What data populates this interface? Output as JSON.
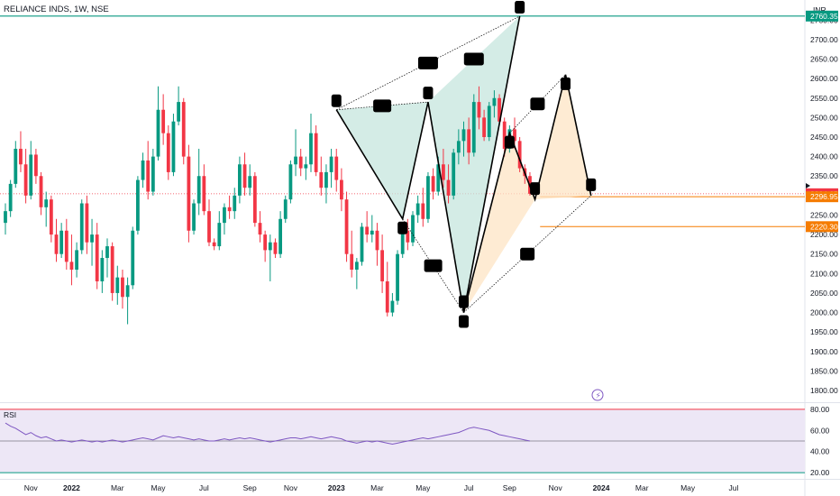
{
  "header": {
    "title": "RELIANCE INDS, 1W, NSE",
    "currency": "INR"
  },
  "colors": {
    "up": "#089981",
    "down": "#f23645",
    "rsi_line": "#7e57c2",
    "rsi_band": "#ede7f6",
    "rsi_upper": "#f23645",
    "rsi_lower": "#089981",
    "level_teal": "#089981",
    "level_orange": "#f57c00",
    "pattern_green": "#c5e6dd",
    "pattern_peach": "#fde4c4",
    "last_price": "#f23645",
    "pattern_line": "#000000"
  },
  "chart_data": [
    {
      "type": "candlestick",
      "title": "RELIANCE INDS, 1W, NSE",
      "ylim": [
        1770,
        2790
      ],
      "yticks": [
        "1800.00",
        "1850.00",
        "1900.00",
        "1950.00",
        "2000.00",
        "2050.00",
        "2100.00",
        "2150.00",
        "2200.00",
        "2250.00",
        "2300.00",
        "2350.00",
        "2400.00",
        "2450.00",
        "2500.00",
        "2550.00",
        "2600.00",
        "2650.00",
        "2700.00",
        "2750.00"
      ],
      "xticks": [
        {
          "label": "Nov",
          "i": 5
        },
        {
          "label": "2022",
          "i": 13,
          "bold": true
        },
        {
          "label": "Mar",
          "i": 22
        },
        {
          "label": "May",
          "i": 30
        },
        {
          "label": "Jul",
          "i": 39
        },
        {
          "label": "Sep",
          "i": 48
        },
        {
          "label": "Nov",
          "i": 56
        },
        {
          "label": "2023",
          "i": 65,
          "bold": true
        },
        {
          "label": "Mar",
          "i": 73
        },
        {
          "label": "May",
          "i": 82
        },
        {
          "label": "Jul",
          "i": 91
        },
        {
          "label": "Sep",
          "i": 99
        },
        {
          "label": "Nov",
          "i": 108
        },
        {
          "label": "2024",
          "i": 117,
          "bold": true
        },
        {
          "label": "Mar",
          "i": 125
        },
        {
          "label": "May",
          "i": 134
        },
        {
          "label": "Jul",
          "i": 143
        }
      ],
      "candles": [
        [
          2230,
          2280,
          2200,
          2260
        ],
        [
          2260,
          2340,
          2245,
          2330
        ],
        [
          2330,
          2440,
          2320,
          2420
        ],
        [
          2420,
          2465,
          2360,
          2380
        ],
        [
          2380,
          2420,
          2280,
          2300
        ],
        [
          2300,
          2440,
          2290,
          2405
        ],
        [
          2405,
          2420,
          2330,
          2350
        ],
        [
          2350,
          2360,
          2250,
          2270
        ],
        [
          2270,
          2310,
          2220,
          2290
        ],
        [
          2290,
          2300,
          2180,
          2200
        ],
        [
          2200,
          2240,
          2130,
          2150
        ],
        [
          2150,
          2230,
          2140,
          2210
        ],
        [
          2210,
          2240,
          2110,
          2130
        ],
        [
          2130,
          2200,
          2070,
          2110
        ],
        [
          2110,
          2180,
          2090,
          2160
        ],
        [
          2160,
          2290,
          2150,
          2280
        ],
        [
          2280,
          2300,
          2150,
          2180
        ],
        [
          2180,
          2240,
          2120,
          2200
        ],
        [
          2200,
          2230,
          2060,
          2080
        ],
        [
          2080,
          2160,
          2050,
          2140
        ],
        [
          2140,
          2190,
          2090,
          2170
        ],
        [
          2170,
          2180,
          2030,
          2050
        ],
        [
          2050,
          2120,
          2020,
          2090
        ],
        [
          2090,
          2110,
          2010,
          2040
        ],
        [
          2040,
          2090,
          1970,
          2070
        ],
        [
          2070,
          2220,
          2060,
          2210
        ],
        [
          2210,
          2350,
          2200,
          2340
        ],
        [
          2340,
          2410,
          2320,
          2390
        ],
        [
          2390,
          2440,
          2290,
          2310
        ],
        [
          2310,
          2420,
          2300,
          2400
        ],
        [
          2400,
          2580,
          2390,
          2520
        ],
        [
          2520,
          2560,
          2430,
          2460
        ],
        [
          2460,
          2480,
          2340,
          2360
        ],
        [
          2360,
          2510,
          2350,
          2490
        ],
        [
          2490,
          2580,
          2480,
          2540
        ],
        [
          2540,
          2550,
          2380,
          2400
        ],
        [
          2400,
          2430,
          2180,
          2210
        ],
        [
          2210,
          2290,
          2200,
          2280
        ],
        [
          2280,
          2420,
          2250,
          2350
        ],
        [
          2350,
          2380,
          2250,
          2260
        ],
        [
          2260,
          2290,
          2170,
          2180
        ],
        [
          2180,
          2190,
          2160,
          2170
        ],
        [
          2170,
          2260,
          2160,
          2230
        ],
        [
          2230,
          2280,
          2200,
          2270
        ],
        [
          2270,
          2300,
          2240,
          2260
        ],
        [
          2260,
          2320,
          2240,
          2300
        ],
        [
          2300,
          2400,
          2280,
          2380
        ],
        [
          2380,
          2410,
          2300,
          2320
        ],
        [
          2320,
          2380,
          2300,
          2350
        ],
        [
          2350,
          2360,
          2220,
          2230
        ],
        [
          2230,
          2260,
          2180,
          2200
        ],
        [
          2200,
          2210,
          2130,
          2160
        ],
        [
          2160,
          2200,
          2080,
          2180
        ],
        [
          2180,
          2190,
          2140,
          2150
        ],
        [
          2150,
          2260,
          2140,
          2240
        ],
        [
          2240,
          2300,
          2230,
          2290
        ],
        [
          2290,
          2390,
          2280,
          2380
        ],
        [
          2380,
          2470,
          2350,
          2400
        ],
        [
          2400,
          2420,
          2350,
          2370
        ],
        [
          2370,
          2400,
          2340,
          2380
        ],
        [
          2380,
          2510,
          2360,
          2460
        ],
        [
          2460,
          2480,
          2350,
          2360
        ],
        [
          2360,
          2400,
          2300,
          2320
        ],
        [
          2320,
          2380,
          2280,
          2360
        ],
        [
          2360,
          2420,
          2320,
          2400
        ],
        [
          2400,
          2420,
          2310,
          2340
        ],
        [
          2340,
          2370,
          2260,
          2290
        ],
        [
          2290,
          2310,
          2130,
          2150
        ],
        [
          2150,
          2210,
          2090,
          2110
        ],
        [
          2110,
          2140,
          2060,
          2130
        ],
        [
          2130,
          2230,
          2120,
          2220
        ],
        [
          2220,
          2260,
          2180,
          2200
        ],
        [
          2200,
          2250,
          2180,
          2210
        ],
        [
          2210,
          2230,
          2120,
          2160
        ],
        [
          2160,
          2200,
          2050,
          2080
        ],
        [
          2080,
          2130,
          1990,
          2000
        ],
        [
          2000,
          2050,
          1990,
          2030
        ],
        [
          2030,
          2160,
          2020,
          2150
        ],
        [
          2150,
          2220,
          2140,
          2210
        ],
        [
          2210,
          2240,
          2160,
          2180
        ],
        [
          2180,
          2260,
          2170,
          2250
        ],
        [
          2250,
          2300,
          2230,
          2280
        ],
        [
          2280,
          2320,
          2220,
          2240
        ],
        [
          2240,
          2360,
          2230,
          2350
        ],
        [
          2350,
          2370,
          2290,
          2310
        ],
        [
          2310,
          2400,
          2300,
          2380
        ],
        [
          2380,
          2420,
          2320,
          2340
        ],
        [
          2340,
          2380,
          2280,
          2300
        ],
        [
          2300,
          2420,
          2290,
          2410
        ],
        [
          2410,
          2470,
          2380,
          2440
        ],
        [
          2440,
          2490,
          2400,
          2470
        ],
        [
          2470,
          2500,
          2380,
          2410
        ],
        [
          2410,
          2560,
          2400,
          2540
        ],
        [
          2540,
          2580,
          2470,
          2500
        ],
        [
          2500,
          2520,
          2440,
          2450
        ],
        [
          2450,
          2540,
          2440,
          2530
        ],
        [
          2530,
          2570,
          2500,
          2550
        ],
        [
          2550,
          2560,
          2480,
          2490
        ],
        [
          2490,
          2500,
          2400,
          2420
        ],
        [
          2420,
          2480,
          2410,
          2470
        ],
        [
          2470,
          2500,
          2420,
          2440
        ],
        [
          2440,
          2450,
          2360,
          2370
        ],
        [
          2370,
          2380,
          2330,
          2350
        ],
        [
          2350,
          2360,
          2300,
          2304.65
        ]
      ],
      "rsi": [
        67,
        64,
        62,
        59,
        56,
        58,
        55,
        53,
        54,
        52,
        50,
        51,
        50,
        49,
        50,
        51,
        50,
        49,
        50,
        49,
        50,
        51,
        50,
        49,
        50,
        51,
        52,
        53,
        52,
        51,
        53,
        55,
        54,
        53,
        54,
        53,
        52,
        51,
        52,
        51,
        50,
        50,
        51,
        52,
        51,
        52,
        53,
        52,
        53,
        52,
        51,
        50,
        49,
        50,
        51,
        52,
        53,
        53,
        52,
        53,
        54,
        53,
        52,
        53,
        54,
        53,
        52,
        50,
        49,
        48,
        49,
        50,
        49,
        50,
        49,
        48,
        47,
        48,
        49,
        50,
        51,
        52,
        53,
        52,
        53,
        54,
        55,
        56,
        57,
        58,
        60,
        62,
        63,
        62,
        61,
        60,
        58,
        56,
        55,
        54,
        53,
        52,
        51,
        50
      ],
      "rsi_ylim": [
        15,
        85
      ],
      "rsi_levels": [
        80,
        50,
        20
      ],
      "rsi_ticks": [
        "80.00",
        "60.00",
        "40.00",
        "20.00"
      ],
      "price_labels": [
        {
          "text": "2760.35",
          "value": 2760.35,
          "color": "#089981"
        },
        {
          "text": "2304.65",
          "value": 2304.65,
          "color": "#f23645"
        },
        {
          "text": "2296.95",
          "value": 2296.95,
          "color": "#f57c00"
        },
        {
          "text": "2220.30",
          "value": 2220.3,
          "color": "#f57c00"
        }
      ],
      "pattern1": {
        "points": [
          [
            65,
            2520
          ],
          [
            78,
            2240
          ],
          [
            83,
            2540
          ],
          [
            90,
            2000
          ],
          [
            101,
            2760
          ]
        ]
      },
      "pattern2": {
        "points": [
          [
            90,
            2000
          ],
          [
            99,
            2460
          ],
          [
            104,
            2290
          ],
          [
            110,
            2610
          ],
          [
            115,
            2300
          ]
        ]
      },
      "last_price": 2304.65
    }
  ],
  "rsi_title": "RSI"
}
